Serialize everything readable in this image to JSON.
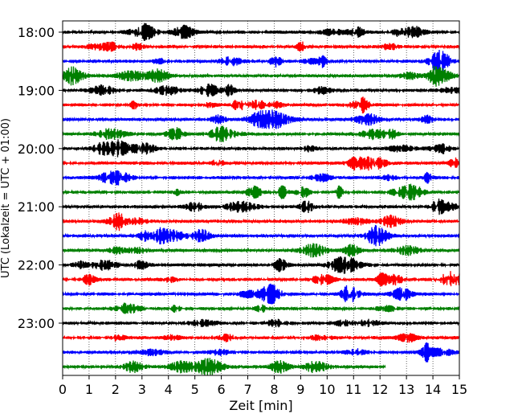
{
  "chart_data": {
    "type": "line",
    "title": "",
    "xlabel": "Zeit  [min]",
    "ylabel": "UTC (Lokalzeit = UTC + 01:00)",
    "xlim": [
      0,
      15
    ],
    "x_ticks": [
      0,
      1,
      2,
      3,
      4,
      5,
      6,
      7,
      8,
      9,
      10,
      11,
      12,
      13,
      14,
      15
    ],
    "x_tick_labels": [
      "0",
      "1",
      "2",
      "3",
      "4",
      "5",
      "6",
      "7",
      "8",
      "9",
      "10",
      "11",
      "12",
      "13",
      "14",
      "15"
    ],
    "y_tick_labels": [
      "18:00",
      "19:00",
      "20:00",
      "21:00",
      "22:00",
      "23:00"
    ],
    "y_ticks_trace_index": [
      0,
      4,
      8,
      12,
      16,
      20
    ],
    "vertical_grid": true,
    "grid_style": "dotted",
    "trace_colors": [
      "#000000",
      "#ff0000",
      "#0000ff",
      "#008000"
    ],
    "traces": [
      {
        "start": "18:00",
        "color": "#000000",
        "x_end": 15
      },
      {
        "start": "18:15",
        "color": "#ff0000",
        "x_end": 15
      },
      {
        "start": "18:30",
        "color": "#0000ff",
        "x_end": 15
      },
      {
        "start": "18:45",
        "color": "#008000",
        "x_end": 15
      },
      {
        "start": "19:00",
        "color": "#000000",
        "x_end": 15
      },
      {
        "start": "19:15",
        "color": "#ff0000",
        "x_end": 15
      },
      {
        "start": "19:30",
        "color": "#0000ff",
        "x_end": 15
      },
      {
        "start": "19:45",
        "color": "#008000",
        "x_end": 15
      },
      {
        "start": "20:00",
        "color": "#000000",
        "x_end": 15
      },
      {
        "start": "20:15",
        "color": "#ff0000",
        "x_end": 15
      },
      {
        "start": "20:30",
        "color": "#0000ff",
        "x_end": 15
      },
      {
        "start": "20:45",
        "color": "#008000",
        "x_end": 15
      },
      {
        "start": "21:00",
        "color": "#000000",
        "x_end": 15
      },
      {
        "start": "21:15",
        "color": "#ff0000",
        "x_end": 15
      },
      {
        "start": "21:30",
        "color": "#0000ff",
        "x_end": 15
      },
      {
        "start": "21:45",
        "color": "#008000",
        "x_end": 15
      },
      {
        "start": "22:00",
        "color": "#000000",
        "x_end": 15
      },
      {
        "start": "22:15",
        "color": "#ff0000",
        "x_end": 15
      },
      {
        "start": "22:30",
        "color": "#0000ff",
        "x_end": 15
      },
      {
        "start": "22:45",
        "color": "#008000",
        "x_end": 15
      },
      {
        "start": "23:00",
        "color": "#000000",
        "x_end": 15
      },
      {
        "start": "23:15",
        "color": "#ff0000",
        "x_end": 15
      },
      {
        "start": "23:30",
        "color": "#0000ff",
        "x_end": 15
      },
      {
        "start": "23:45",
        "color": "#008000",
        "x_end": 12.2
      }
    ]
  }
}
